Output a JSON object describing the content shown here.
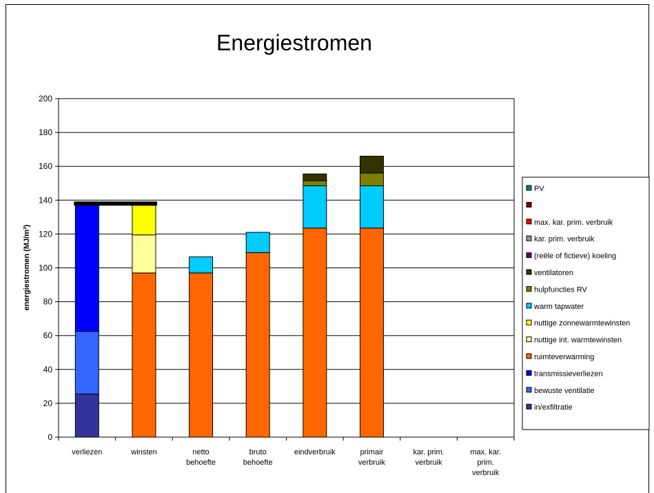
{
  "chart_data": {
    "type": "bar",
    "stacked": true,
    "title": "Energiestromen",
    "xlabel": "",
    "ylabel": "energiestromen (MJ/m³)",
    "ylim": [
      0,
      200
    ],
    "yticks": [
      0,
      20,
      40,
      60,
      80,
      100,
      120,
      140,
      160,
      180,
      200
    ],
    "grid": true,
    "legend_position": "right",
    "categories": [
      [
        "verliezen"
      ],
      [
        "winsten"
      ],
      [
        "netto",
        "behoefte"
      ],
      [
        "bruto",
        "behoefte"
      ],
      [
        "eindverbruik"
      ],
      [
        "primair",
        "verbruik"
      ],
      [
        "kar. prim.",
        "verbruik"
      ],
      [
        "max. kar.",
        "prim.",
        "verbruik"
      ]
    ],
    "series": [
      {
        "name": "in/exfiltratie",
        "color": "#333399",
        "values": [
          25.5,
          0,
          0,
          0,
          0,
          0,
          0,
          0
        ]
      },
      {
        "name": "bewuste ventilatie",
        "color": "#3366ff",
        "values": [
          37,
          0,
          0,
          0,
          0,
          0,
          0,
          0
        ]
      },
      {
        "name": "transmissieverliezen",
        "color": "#0000ff",
        "values": [
          74.5,
          0,
          0,
          0,
          0,
          0,
          0,
          0
        ]
      },
      {
        "name": "ruimteverwarming",
        "color": "#ff6600",
        "values": [
          0,
          97,
          97,
          109,
          123.5,
          123.5,
          0,
          0
        ]
      },
      {
        "name": "nuttige int. warmtewinsten",
        "color": "#ffff99",
        "values": [
          0,
          22.5,
          0,
          0,
          0,
          0,
          0,
          0
        ]
      },
      {
        "name": "nuttige zonnewarmtewinsten",
        "color": "#ffff00",
        "values": [
          0,
          17.5,
          0,
          0,
          0,
          0,
          0,
          0
        ]
      },
      {
        "name": "warm tapwater",
        "color": "#00ccff",
        "values": [
          0,
          0,
          9.5,
          12,
          25,
          25,
          0,
          0
        ]
      },
      {
        "name": "hulpfuncties RV",
        "color": "#808000",
        "values": [
          0,
          0,
          0,
          0,
          3,
          7.5,
          0,
          0
        ]
      },
      {
        "name": "ventilatoren",
        "color": "#333300",
        "values": [
          0,
          0,
          0,
          0,
          4,
          10,
          0,
          0
        ]
      },
      {
        "name": "(reële of fictieve) koeling",
        "color": "#660066",
        "values": [
          0,
          0,
          0,
          0,
          0,
          0,
          0,
          0
        ]
      },
      {
        "name": "kar. prim. verbruik",
        "color": "#969696",
        "values": [
          0,
          0,
          0,
          0,
          0,
          0,
          0,
          0
        ]
      },
      {
        "name": "max. kar. prim. verbruik",
        "color": "#ff0000",
        "values": [
          0,
          0,
          0,
          0,
          0,
          0,
          0,
          0
        ]
      },
      {
        "name": "",
        "color": "#800000",
        "values": [
          0,
          0,
          0,
          0,
          0,
          0,
          0,
          0
        ]
      },
      {
        "name": "PV",
        "color": "#008080",
        "values": [
          0,
          0,
          0,
          0,
          0,
          0,
          0,
          0
        ]
      }
    ],
    "reference_line": {
      "value": 138,
      "categories": [
        "verliezen",
        "winsten"
      ],
      "color": "#000000"
    },
    "legend_order": [
      "PV",
      "",
      "max. kar. prim. verbruik",
      "kar. prim. verbruik",
      "(reële of fictieve) koeling",
      "ventilatoren",
      "hulpfuncties RV",
      "warm tapwater",
      "nuttige zonnewarmtewinsten",
      "nuttige int. warmtewinsten",
      "ruimteverwarming",
      "transmissieverliezen",
      "bewuste ventilatie",
      "in/exfiltratie"
    ]
  }
}
